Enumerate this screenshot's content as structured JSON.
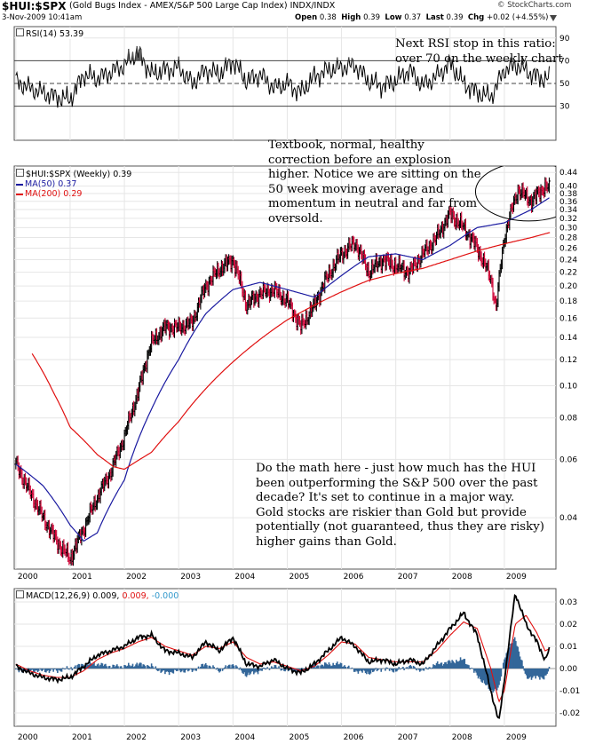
{
  "header": {
    "symbol": "$HUI:$SPX",
    "description": "(Gold Bugs Index - AMEX/S&P 500 Large Cap Index) INDX/INDX",
    "watermark": "© StockCharts.com",
    "date": "3-Nov-2009 10:41am",
    "quote": {
      "open_label": "Open",
      "open": "0.38",
      "high_label": "High",
      "high": "0.39",
      "low_label": "Low",
      "low": "0.37",
      "last_label": "Last",
      "last": "0.39",
      "chg_label": "Chg",
      "chg": "+0.02 (+4.55%)"
    },
    "menu_icon": "triangle-down-icon"
  },
  "annotations": {
    "rsi_note_line1": "Next RSI stop in this ratio:",
    "rsi_note_line2": "over 70 on the weekly chart",
    "price_note_lines": [
      "Textbook, normal, healthy",
      "correction before an explosion",
      "higher. Notice we are sitting on the",
      "50 week moving average and",
      "momentum in neutral and far from",
      "oversold."
    ],
    "math_note_lines": [
      "Do the math here - just how much has the HUI",
      "been outperforming the S&P 500 over the past",
      "decade? It's set to continue in a major way.",
      "Gold stocks are riskier than Gold but provide",
      "potentially (not guaranteed, thus they are risky)",
      "higher gains than Gold."
    ]
  },
  "colors": {
    "ma50": "#1a1aa0",
    "ma200": "#e01010",
    "up_bar": "#000000",
    "down_bar": "#cc0033",
    "rsi_fill": "#555555",
    "macd_line": "#000000",
    "macd_signal": "#e01010",
    "macd_hist": "#336699",
    "grid": "#e6e6e6"
  },
  "chart_data": [
    {
      "type": "line",
      "panel": "rsi",
      "legend": "RSI(14) 53.39",
      "ylim": [
        0,
        100
      ],
      "y_ticks": [
        30,
        50,
        70,
        90
      ],
      "reference_lines": [
        30,
        50,
        70
      ],
      "x": [
        2000.0,
        2000.25,
        2000.5,
        2000.75,
        2001.0,
        2001.25,
        2001.5,
        2001.75,
        2002.0,
        2002.25,
        2002.5,
        2002.75,
        2003.0,
        2003.25,
        2003.5,
        2003.75,
        2004.0,
        2004.25,
        2004.5,
        2004.75,
        2005.0,
        2005.25,
        2005.5,
        2005.75,
        2006.0,
        2006.25,
        2006.5,
        2006.75,
        2007.0,
        2007.25,
        2007.5,
        2007.75,
        2008.0,
        2008.25,
        2008.5,
        2008.75,
        2009.0,
        2009.25,
        2009.5,
        2009.75,
        2009.84
      ],
      "values": [
        52,
        46,
        42,
        38,
        36,
        58,
        54,
        60,
        66,
        78,
        58,
        62,
        64,
        50,
        62,
        58,
        70,
        52,
        58,
        46,
        50,
        42,
        56,
        62,
        64,
        66,
        52,
        48,
        52,
        62,
        48,
        56,
        68,
        50,
        42,
        38,
        62,
        66,
        58,
        54,
        53.39
      ]
    },
    {
      "type": "bar",
      "panel": "price",
      "legend": "$HUI:$SPX (Weekly) 0.39",
      "scale": "log",
      "ylim": [
        0.028,
        0.46
      ],
      "y_ticks": [
        "0.44",
        "0.40",
        "0.38",
        "0.36",
        "0.34",
        "0.32",
        "0.30",
        "0.28",
        "0.26",
        "0.24",
        "0.22",
        "0.20",
        "0.18",
        "0.16",
        "0.14",
        "0.12",
        "0.10",
        "0.08",
        "0.06",
        "0.04"
      ],
      "x_ticks": [
        "2000",
        "2001",
        "2002",
        "2003",
        "2004",
        "2005",
        "2006",
        "2007",
        "2008",
        "2009"
      ],
      "x": [
        2000.0,
        2000.25,
        2000.5,
        2000.75,
        2001.0,
        2001.25,
        2001.5,
        2001.75,
        2002.0,
        2002.25,
        2002.5,
        2002.75,
        2003.0,
        2003.25,
        2003.5,
        2003.75,
        2004.0,
        2004.25,
        2004.5,
        2004.75,
        2005.0,
        2005.25,
        2005.5,
        2005.75,
        2006.0,
        2006.25,
        2006.5,
        2006.75,
        2007.0,
        2007.25,
        2007.5,
        2007.75,
        2008.0,
        2008.25,
        2008.5,
        2008.75,
        2008.85,
        2009.0,
        2009.25,
        2009.5,
        2009.75,
        2009.84
      ],
      "values": [
        0.058,
        0.048,
        0.04,
        0.034,
        0.03,
        0.037,
        0.046,
        0.055,
        0.07,
        0.095,
        0.135,
        0.15,
        0.15,
        0.155,
        0.2,
        0.225,
        0.24,
        0.175,
        0.19,
        0.195,
        0.18,
        0.15,
        0.175,
        0.215,
        0.25,
        0.27,
        0.22,
        0.24,
        0.23,
        0.22,
        0.25,
        0.28,
        0.33,
        0.3,
        0.26,
        0.21,
        0.17,
        0.28,
        0.39,
        0.36,
        0.4,
        0.39
      ],
      "series": [
        {
          "name": "MA(50) 0.37",
          "x": [
            2000.0,
            2000.5,
            2001.0,
            2001.25,
            2001.5,
            2002.0,
            2002.5,
            2003.0,
            2003.5,
            2004.0,
            2004.5,
            2005.0,
            2005.5,
            2006.0,
            2006.5,
            2007.0,
            2007.5,
            2008.0,
            2008.5,
            2009.0,
            2009.5,
            2009.84
          ],
          "values": [
            0.058,
            0.05,
            0.038,
            0.034,
            0.036,
            0.052,
            0.085,
            0.12,
            0.165,
            0.195,
            0.205,
            0.195,
            0.185,
            0.215,
            0.245,
            0.25,
            0.24,
            0.265,
            0.3,
            0.31,
            0.34,
            0.37
          ]
        },
        {
          "name": "MA(200) 0.29",
          "x": [
            2000.3,
            2000.7,
            2001.0,
            2001.5,
            2001.8,
            2002.0,
            2002.5,
            2003.0,
            2003.5,
            2004.0,
            2004.5,
            2005.0,
            2005.5,
            2006.0,
            2006.5,
            2007.0,
            2007.5,
            2008.0,
            2008.5,
            2009.0,
            2009.5,
            2009.84
          ],
          "values": [
            0.125,
            0.095,
            0.075,
            0.062,
            0.057,
            0.056,
            0.063,
            0.078,
            0.098,
            0.118,
            0.138,
            0.158,
            0.175,
            0.192,
            0.208,
            0.218,
            0.226,
            0.24,
            0.255,
            0.268,
            0.28,
            0.29
          ]
        }
      ]
    },
    {
      "type": "line",
      "panel": "macd",
      "legend_label": "MACD(12,26,9)",
      "legend_values": [
        "0.009,",
        "0.009,",
        "-0.000"
      ],
      "ylim": [
        -0.026,
        0.036
      ],
      "y_ticks": [
        "0.03",
        "0.02",
        "0.01",
        "0.00",
        "-0.01",
        "-0.02"
      ],
      "x_ticks": [
        "2000",
        "2001",
        "2002",
        "2003",
        "2004",
        "2005",
        "2006",
        "2007",
        "2008",
        "2009"
      ],
      "x": [
        2000.0,
        2000.25,
        2000.5,
        2000.75,
        2001.0,
        2001.25,
        2001.5,
        2001.75,
        2002.0,
        2002.25,
        2002.5,
        2002.75,
        2003.0,
        2003.25,
        2003.5,
        2003.75,
        2004.0,
        2004.25,
        2004.5,
        2004.75,
        2005.0,
        2005.25,
        2005.5,
        2005.75,
        2006.0,
        2006.25,
        2006.5,
        2006.75,
        2007.0,
        2007.25,
        2007.5,
        2007.75,
        2008.0,
        2008.25,
        2008.5,
        2008.75,
        2008.9,
        2009.0,
        2009.2,
        2009.4,
        2009.6,
        2009.75,
        2009.84
      ],
      "series": [
        {
          "name": "MACD",
          "values": [
            0.001,
            -0.002,
            -0.004,
            -0.005,
            -0.004,
            0.001,
            0.006,
            0.008,
            0.01,
            0.014,
            0.015,
            0.008,
            0.007,
            0.005,
            0.012,
            0.008,
            0.014,
            0.002,
            0.001,
            0.004,
            0.0,
            -0.002,
            0.002,
            0.008,
            0.014,
            0.01,
            0.003,
            0.004,
            0.002,
            0.004,
            0.002,
            0.01,
            0.018,
            0.025,
            0.015,
            -0.01,
            -0.024,
            -0.005,
            0.034,
            0.02,
            0.012,
            0.004,
            0.009
          ]
        },
        {
          "name": "Signal",
          "values": [
            0.002,
            -0.001,
            -0.003,
            -0.004,
            -0.004,
            -0.001,
            0.004,
            0.007,
            0.009,
            0.012,
            0.014,
            0.01,
            0.008,
            0.006,
            0.01,
            0.009,
            0.012,
            0.005,
            0.002,
            0.003,
            0.001,
            -0.001,
            0.001,
            0.006,
            0.012,
            0.011,
            0.005,
            0.004,
            0.003,
            0.003,
            0.003,
            0.008,
            0.015,
            0.021,
            0.018,
            0.0,
            -0.015,
            -0.01,
            0.02,
            0.024,
            0.016,
            0.008,
            0.009
          ]
        }
      ]
    }
  ]
}
